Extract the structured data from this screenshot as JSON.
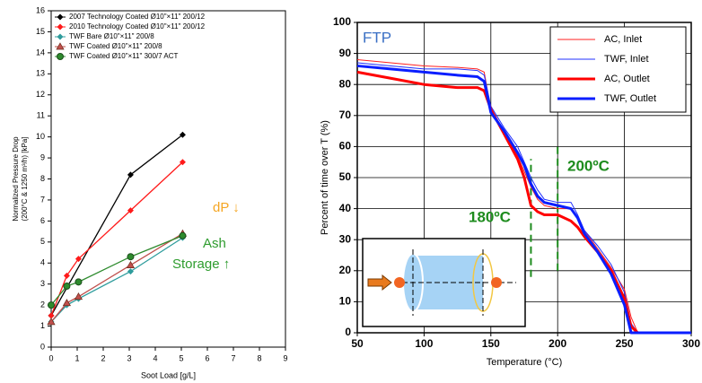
{
  "chart_data": [
    {
      "type": "scatter",
      "xlabel": "Soot Load [g/L]",
      "ylabel": [
        "Normalized Pressure Drop",
        "(200°C & 1250 m³/h) [kPa]"
      ],
      "xlim": [
        0,
        9
      ],
      "xticks": [
        0,
        1,
        2,
        3,
        4,
        5,
        6,
        7,
        8,
        9
      ],
      "ylim": [
        0,
        16
      ],
      "yticks": [
        0,
        1,
        2,
        3,
        4,
        5,
        6,
        7,
        8,
        9,
        10,
        11,
        12,
        13,
        14,
        15,
        16
      ],
      "grid": false,
      "legend": "upper left",
      "series": [
        {
          "name": "2007 Technology Coated Ø10\"×11\" 200/12",
          "color": "#000000",
          "marker": "diamond",
          "x": [
            0,
            3.05,
            5.05
          ],
          "values": [
            1.5,
            8.2,
            10.1
          ]
        },
        {
          "name": "2010 Technology Coated Ø10\"×11\" 200/12",
          "color": "#ff1a1a",
          "marker": "diamond",
          "x": [
            0,
            0.6,
            1.05,
            3.05,
            5.05
          ],
          "values": [
            1.5,
            3.4,
            4.2,
            6.5,
            8.8
          ]
        },
        {
          "name": "TWF Bare Ø10\"×11\" 200/8",
          "color": "#2e9c9c",
          "marker": "diamond",
          "x": [
            0,
            0.6,
            1.05,
            3.05,
            5.05
          ],
          "values": [
            1.2,
            2.0,
            2.3,
            3.6,
            5.2
          ]
        },
        {
          "name": "TWF Coated Ø10\"×11\" 200/8",
          "color": "#c0504d",
          "marker": "triangle",
          "x": [
            0,
            0.6,
            1.05,
            3.05,
            5.05
          ],
          "values": [
            1.2,
            2.1,
            2.4,
            3.9,
            5.4
          ]
        },
        {
          "name": "TWF Coated Ø10\"×11\" 300/7 ACT",
          "color": "#2e8b2e",
          "marker": "circle",
          "x": [
            0,
            0.6,
            1.05,
            3.05,
            5.05
          ],
          "values": [
            2.0,
            2.9,
            3.1,
            4.3,
            5.3
          ]
        }
      ],
      "annotations": [
        {
          "text": "dP ↓",
          "color": "#f5a623"
        },
        {
          "text": "Ash",
          "color": "#2e9c2e"
        },
        {
          "text": "Storage ↑",
          "color": "#2e9c2e"
        }
      ]
    },
    {
      "type": "line",
      "xlabel": "Temperature (°C)",
      "ylabel": "Percent of time over T (%)",
      "xlim": [
        50,
        300
      ],
      "xticks": [
        50,
        100,
        150,
        200,
        250,
        300
      ],
      "ylim": [
        0,
        100
      ],
      "yticks": [
        0,
        10,
        20,
        30,
        40,
        50,
        60,
        70,
        80,
        90,
        100
      ],
      "grid": true,
      "legend": "upper right",
      "x": [
        50,
        75,
        100,
        125,
        140,
        145,
        150,
        160,
        170,
        175,
        180,
        185,
        190,
        200,
        210,
        215,
        220,
        230,
        240,
        250,
        255,
        260,
        300
      ],
      "series": [
        {
          "name": "AC, Inlet",
          "color": "#ff2020",
          "width": 1,
          "values": [
            88,
            87,
            86,
            85.5,
            85,
            84,
            72,
            65,
            57,
            52,
            47,
            43,
            41,
            40,
            40,
            37,
            33,
            27,
            21,
            14,
            5,
            0,
            0
          ]
        },
        {
          "name": "TWF, Inlet",
          "color": "#2030ff",
          "width": 1,
          "values": [
            87,
            86,
            85,
            85,
            84.5,
            83,
            73,
            66,
            60,
            55,
            50,
            46,
            43,
            42,
            42,
            38,
            33,
            28,
            22,
            13,
            3,
            0,
            0
          ]
        },
        {
          "name": "AC, Outlet",
          "color": "#ff0000",
          "width": 3,
          "values": [
            84,
            82,
            80,
            79,
            79,
            78,
            72,
            64,
            56,
            50,
            41,
            39,
            38,
            38,
            36,
            34,
            31,
            26,
            20,
            11,
            2,
            0,
            0
          ]
        },
        {
          "name": "TWF, Outlet",
          "color": "#0a1eff",
          "width": 3,
          "values": [
            86,
            85,
            84,
            83,
            82.5,
            81,
            71,
            65,
            58,
            54,
            48,
            44,
            42,
            41,
            40,
            37,
            32,
            26,
            19,
            9,
            0,
            0,
            0
          ]
        }
      ],
      "reference_lines": [
        {
          "x": 180,
          "y": [
            18,
            56
          ]
        },
        {
          "x": 200,
          "y": [
            20,
            60
          ]
        }
      ],
      "annotations": [
        {
          "text": "FTP",
          "color": "#3a6fc4"
        },
        {
          "text": "200ºC",
          "color": "#1e8c1e"
        },
        {
          "text": "180ºC",
          "color": "#1e8c1e"
        }
      ]
    }
  ]
}
